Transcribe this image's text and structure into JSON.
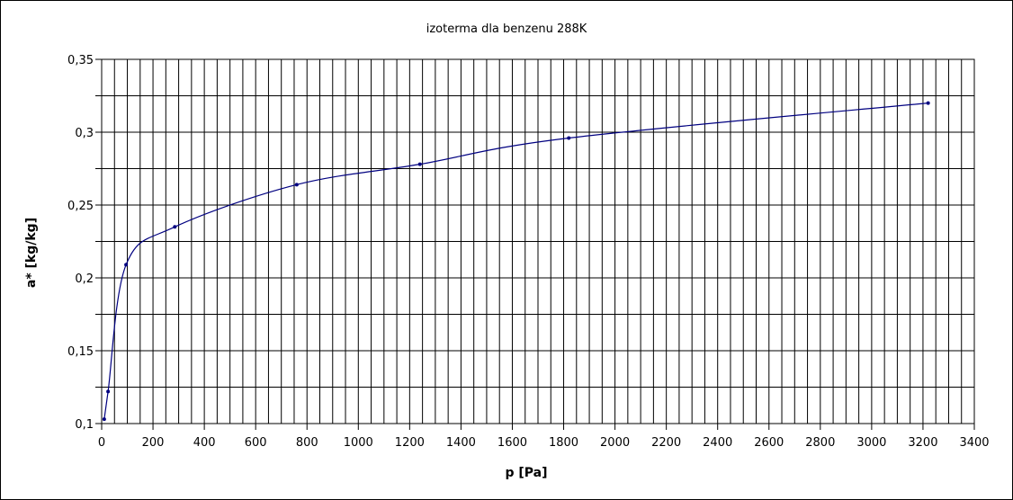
{
  "chart_data": {
    "type": "line",
    "title": "izoterma dla benzenu 288K",
    "xlabel": "p [Pa]",
    "ylabel": "a* [kg/kg]",
    "xlim": [
      0,
      3400
    ],
    "ylim": [
      0.1,
      0.35
    ],
    "x_ticks": [
      0,
      200,
      400,
      600,
      800,
      1000,
      1200,
      1400,
      1600,
      1800,
      2000,
      2200,
      2400,
      2600,
      2800,
      3000,
      3200,
      3400
    ],
    "x_tick_labels": [
      "0",
      "200",
      "400",
      "600",
      "800",
      "1000",
      "1200",
      "1400",
      "1600",
      "1800",
      "2000",
      "2200",
      "2400",
      "2600",
      "2800",
      "3000",
      "3200",
      "3400"
    ],
    "y_ticks": [
      0.1,
      0.15,
      0.2,
      0.25,
      0.3,
      0.35
    ],
    "y_tick_labels": [
      "0,1",
      "0,15",
      "0,2",
      "0,25",
      "0,3",
      "0,35"
    ],
    "x_minor_step": 50,
    "y_minor_step": 0.025,
    "grid": true,
    "legend": "none",
    "line_color": "#000080",
    "grid_color": "#000000",
    "series": [
      {
        "points": [
          {
            "x": 10,
            "y": 0.103
          },
          {
            "x": 25,
            "y": 0.122
          },
          {
            "x": 95,
            "y": 0.209
          },
          {
            "x": 285,
            "y": 0.235
          },
          {
            "x": 760,
            "y": 0.264
          },
          {
            "x": 1240,
            "y": 0.278
          },
          {
            "x": 1820,
            "y": 0.296
          },
          {
            "x": 3220,
            "y": 0.32
          }
        ]
      }
    ]
  }
}
